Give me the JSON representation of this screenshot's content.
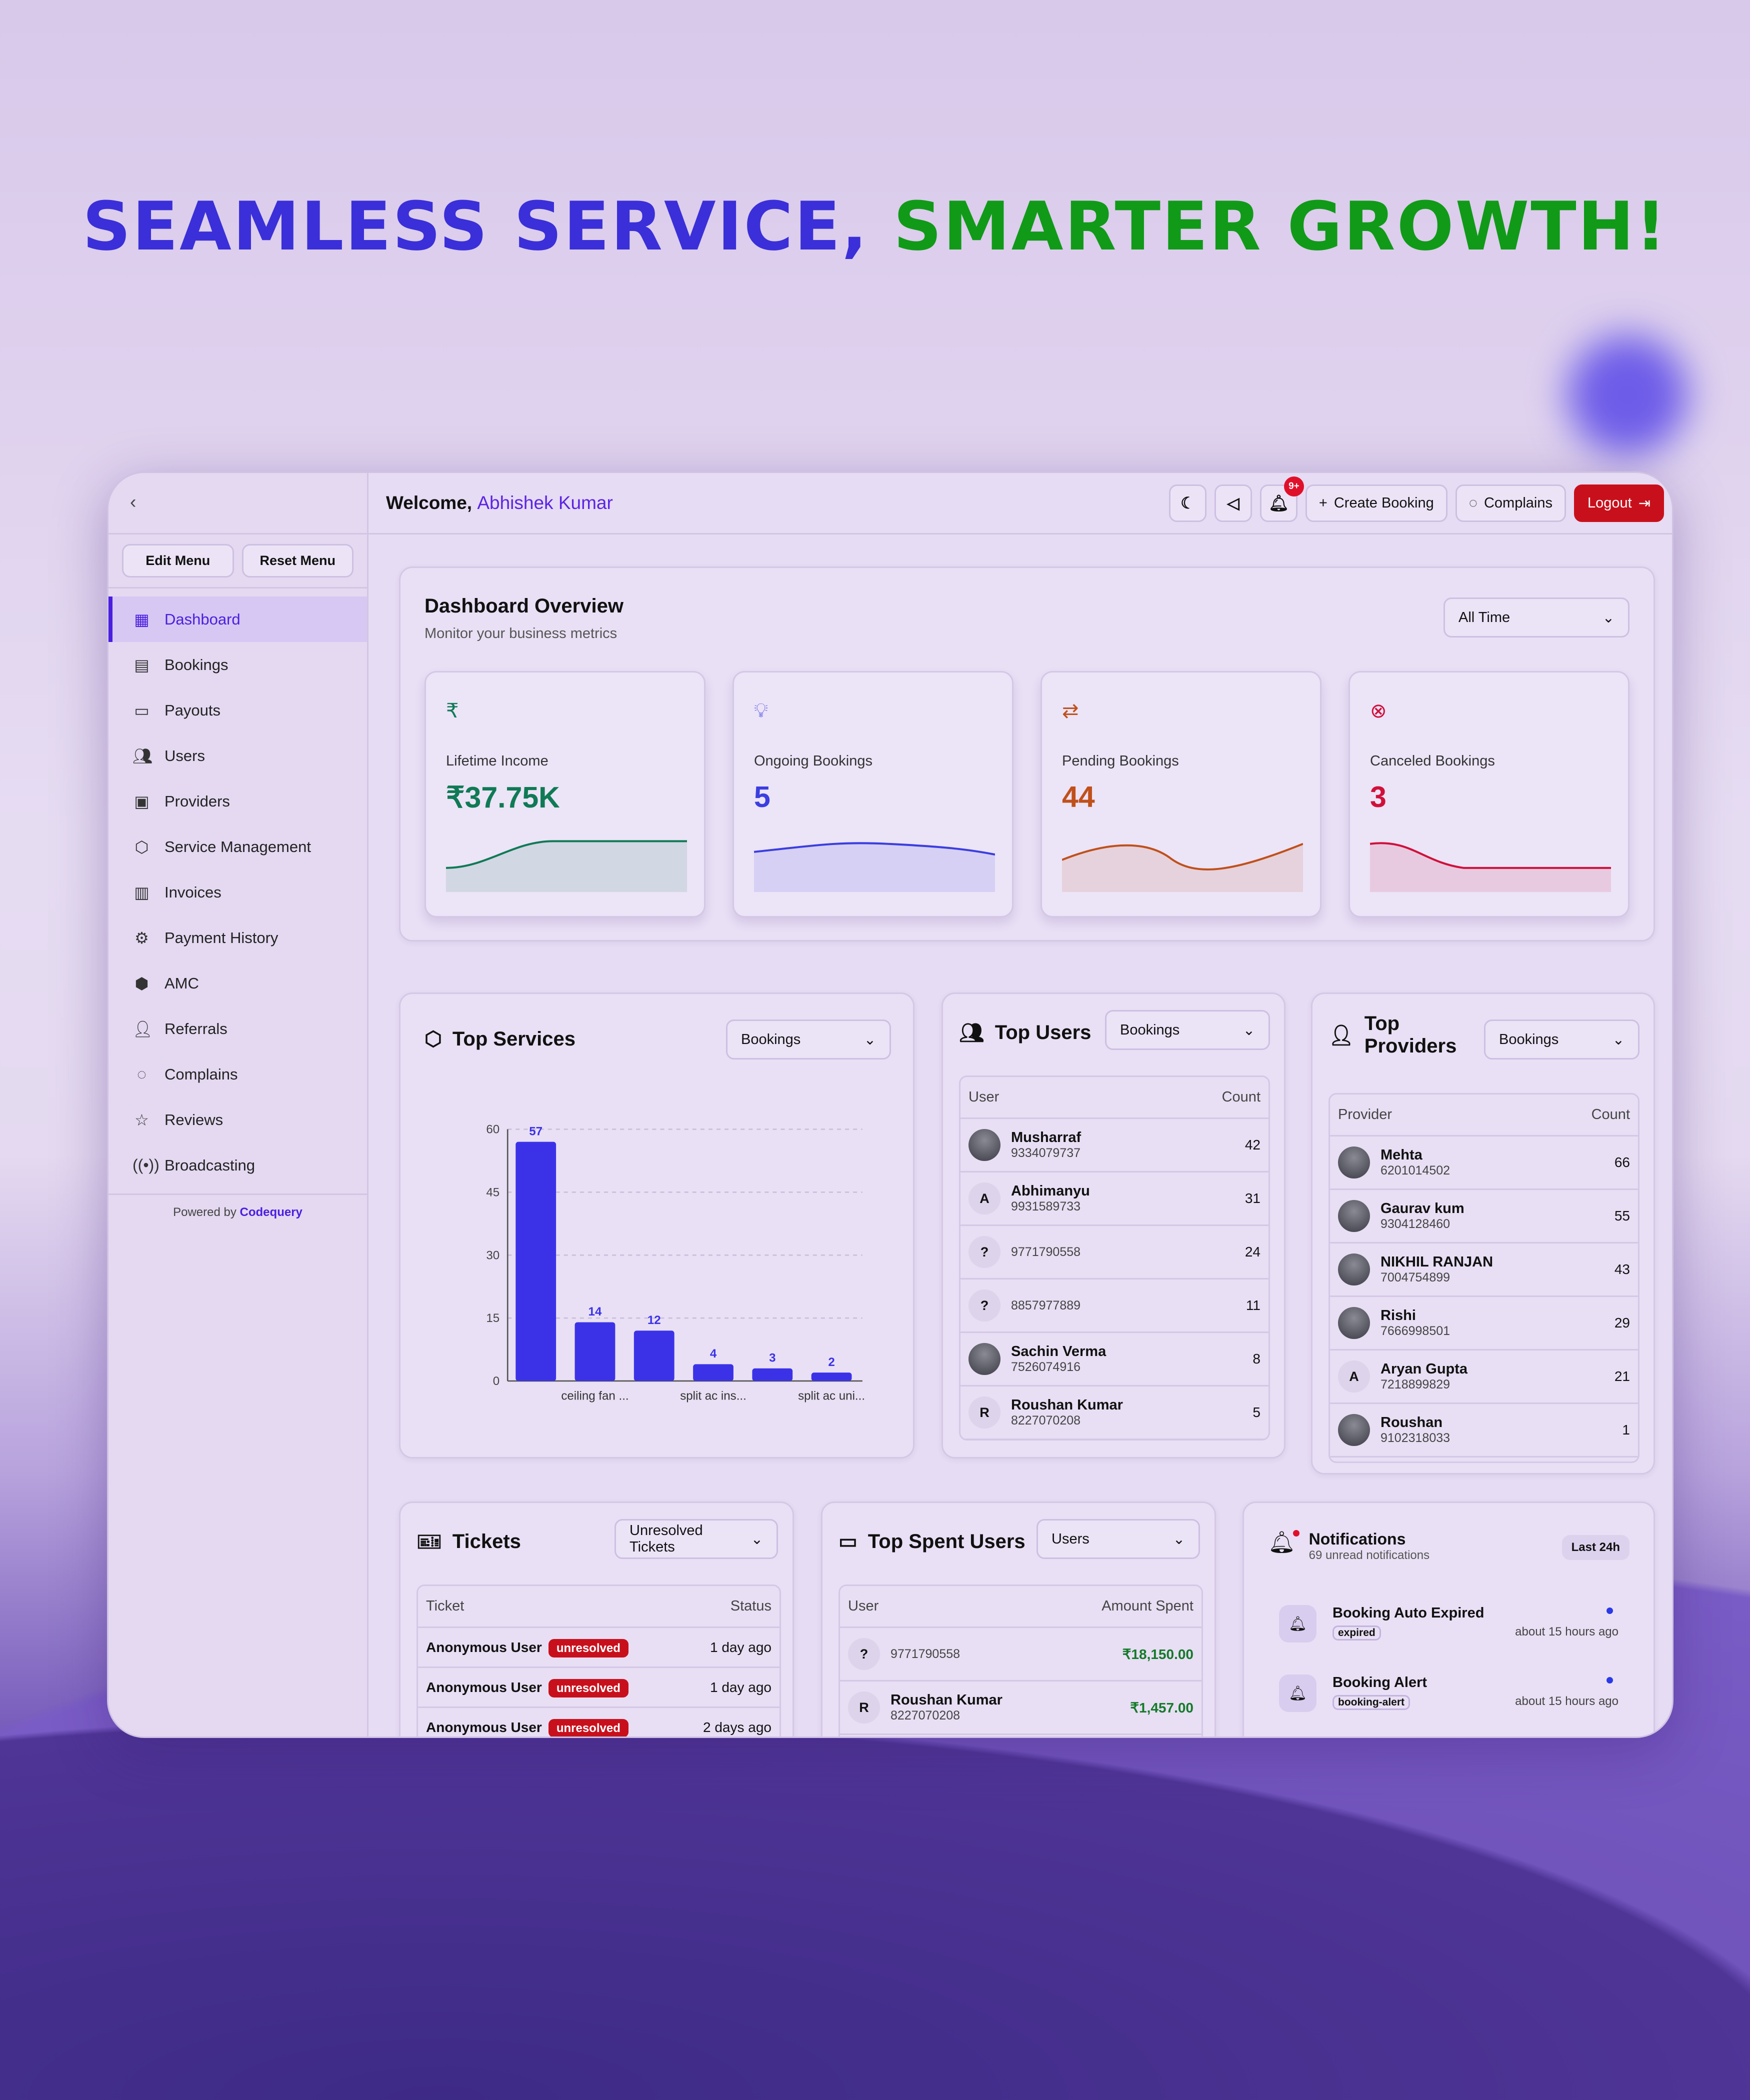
{
  "headline": {
    "part1": "SEAMLESS SERVICE,",
    "part2": "SMARTER GROWTH!"
  },
  "colors": {
    "headline_blue": "#3a2fd8",
    "headline_green": "#109a18",
    "accent": "#4b1fe0",
    "logout": "#c8101c",
    "bar": "#3b32e8"
  },
  "sidebar": {
    "edit_menu": "Edit Menu",
    "reset_menu": "Reset Menu",
    "items": [
      {
        "label": "Dashboard",
        "icon": "grid-icon",
        "active": true
      },
      {
        "label": "Bookings",
        "icon": "calendar-icon"
      },
      {
        "label": "Payouts",
        "icon": "card-icon"
      },
      {
        "label": "Users",
        "icon": "users-icon"
      },
      {
        "label": "Providers",
        "icon": "briefcase-icon"
      },
      {
        "label": "Service Management",
        "icon": "box-icon"
      },
      {
        "label": "Invoices",
        "icon": "inbox-icon"
      },
      {
        "label": "Payment History",
        "icon": "gear-icon"
      },
      {
        "label": "AMC",
        "icon": "package-icon"
      },
      {
        "label": "Referrals",
        "icon": "user-plus-icon"
      },
      {
        "label": "Complains",
        "icon": "message-icon"
      },
      {
        "label": "Reviews",
        "icon": "star-icon"
      },
      {
        "label": "Broadcasting",
        "icon": "broadcast-icon"
      }
    ],
    "powered_by": "Powered by",
    "brand": "Codequery"
  },
  "header": {
    "welcome": "Welcome,",
    "user": "Abhishek Kumar",
    "notif_badge": "9+",
    "create_booking": "Create Booking",
    "complains": "Complains",
    "logout": "Logout"
  },
  "overview": {
    "title": "Dashboard Overview",
    "subtitle": "Monitor your business metrics",
    "range": "All Time",
    "stats": [
      {
        "label": "Lifetime Income",
        "value": "₹37.75K",
        "color": "#0f7a55",
        "icon": "rupee-icon"
      },
      {
        "label": "Ongoing Bookings",
        "value": "5",
        "color": "#3b3ee0",
        "icon": "bulb-icon"
      },
      {
        "label": "Pending Bookings",
        "value": "44",
        "color": "#c0501a",
        "icon": "swap-icon"
      },
      {
        "label": "Canceled Bookings",
        "value": "3",
        "color": "#d0103a",
        "icon": "x-circle-icon"
      }
    ]
  },
  "top_services": {
    "title": "Top Services",
    "metric": "Bookings"
  },
  "chart_data": {
    "type": "bar",
    "categories": [
      "",
      "ceiling fan ...",
      "",
      "split ac ins...",
      "",
      "split ac uni..."
    ],
    "values": [
      57,
      14,
      12,
      4,
      3,
      2
    ],
    "ylim": [
      0,
      60
    ],
    "yticks": [
      0,
      15,
      30,
      45,
      60
    ],
    "grid": true,
    "data_labels": true
  },
  "top_users": {
    "title": "Top Users",
    "metric": "Bookings",
    "col_user": "User",
    "col_count": "Count",
    "rows": [
      {
        "name": "Musharraf",
        "phone": "9334079737",
        "count": "42",
        "avatar": ""
      },
      {
        "name": "Abhimanyu",
        "phone": "9931589733",
        "count": "31",
        "avatar": "A"
      },
      {
        "name": "",
        "phone": "9771790558",
        "count": "24",
        "avatar": "?"
      },
      {
        "name": "",
        "phone": "8857977889",
        "count": "11",
        "avatar": "?"
      },
      {
        "name": "Sachin Verma",
        "phone": "7526074916",
        "count": "8",
        "avatar": ""
      },
      {
        "name": "Roushan Kumar",
        "phone": "8227070208",
        "count": "5",
        "avatar": "R"
      }
    ]
  },
  "top_providers": {
    "title": "Top Providers",
    "metric": "Bookings",
    "col_provider": "Provider",
    "col_count": "Count",
    "rows": [
      {
        "name": "Mehta",
        "phone": "6201014502",
        "count": "66",
        "avatar": ""
      },
      {
        "name": "Gaurav kum",
        "phone": "9304128460",
        "count": "55",
        "avatar": ""
      },
      {
        "name": "NIKHIL RANJAN",
        "phone": "7004754899",
        "count": "43",
        "avatar": ""
      },
      {
        "name": "Rishi",
        "phone": "7666998501",
        "count": "29",
        "avatar": ""
      },
      {
        "name": "Aryan Gupta",
        "phone": "7218899829",
        "count": "21",
        "avatar": "A"
      },
      {
        "name": "Roushan",
        "phone": "9102318033",
        "count": "1",
        "avatar": ""
      }
    ]
  },
  "tickets": {
    "title": "Tickets",
    "filter": "Unresolved Tickets",
    "col_ticket": "Ticket",
    "col_status": "Status",
    "rows": [
      {
        "user": "Anonymous User",
        "status": "unresolved",
        "time": "1 day ago"
      },
      {
        "user": "Anonymous User",
        "status": "unresolved",
        "time": "1 day ago"
      },
      {
        "user": "Anonymous User",
        "status": "unresolved",
        "time": "2 days ago"
      }
    ]
  },
  "top_spent": {
    "title": "Top Spent Users",
    "filter": "Users",
    "col_user": "User",
    "col_amount": "Amount Spent",
    "rows": [
      {
        "name": "",
        "phone": "9771790558",
        "amount": "₹18,150.00",
        "avatar": "?"
      },
      {
        "name": "Roushan Kumar",
        "phone": "8227070208",
        "amount": "₹1,457.00",
        "avatar": "R"
      }
    ]
  },
  "notifications": {
    "title": "Notifications",
    "subtitle": "69 unread notifications",
    "range": "Last 24h",
    "items": [
      {
        "title": "Booking Auto Expired",
        "tag": "expired",
        "time": "about 15 hours ago"
      },
      {
        "title": "Booking Alert",
        "tag": "booking-alert",
        "time": "about 15 hours ago"
      }
    ]
  }
}
